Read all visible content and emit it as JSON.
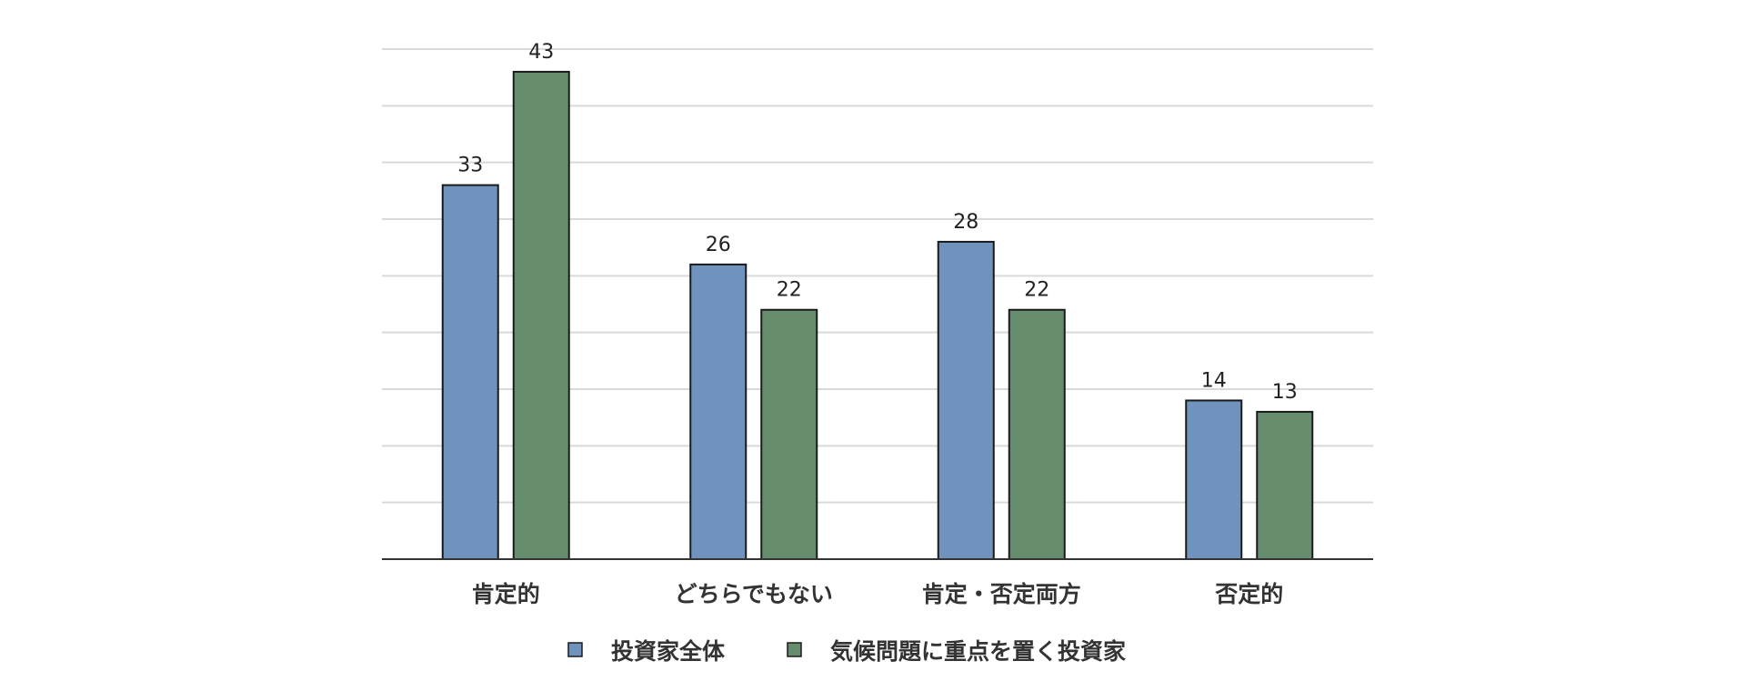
{
  "chart_data": {
    "type": "bar",
    "categories": [
      "肯定的",
      "どちらでもない",
      "肯定・否定両方",
      "否定的"
    ],
    "series": [
      {
        "name": "投資家全体",
        "values": [
          33,
          26,
          28,
          14
        ],
        "color": "#6f93bd"
      },
      {
        "name": "気候問題に重点を置く投資家",
        "values": [
          43,
          22,
          22,
          13
        ],
        "color": "#668c6e"
      }
    ],
    "ylim": [
      0,
      45
    ],
    "grid": true,
    "legend_position": "bottom-center",
    "bar_outline_color": "#1a1a1a",
    "grid_color": "#d9d9d9"
  }
}
